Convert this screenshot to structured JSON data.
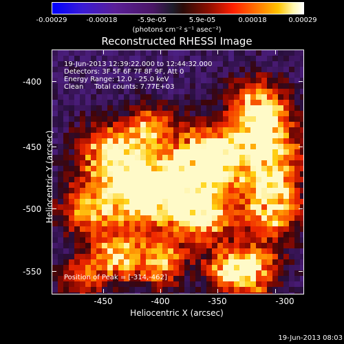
{
  "colorbar": {
    "ticks": [
      "-0.00029",
      "-0.00018",
      "-5.9e-05",
      "5.9e-05",
      "0.00018",
      "0.00029"
    ],
    "units": "(photons cm⁻² s⁻¹ asec⁻²)"
  },
  "title": "Reconstructed RHESSI Image",
  "info": {
    "line1": "19-Jun-2013 12:39:22.000 to 12:44:32.000",
    "line2": "Detectors: 3F 5F 6F 7F 8F 9F, Att 0",
    "line3": "Energy Range: 12.0 - 25.0 keV",
    "line4": "Clean     Total counts: 7.77E+03",
    "peak": "Position of Peak = [-314,-462]"
  },
  "x_axis": {
    "label": "Heliocentric X (arcsec)",
    "ticks": [
      "-450",
      "-400",
      "-350",
      "-300"
    ]
  },
  "y_axis": {
    "label": "Heliocentric Y (arcsec)",
    "ticks": [
      "-400",
      "-450",
      "-500",
      "-550"
    ]
  },
  "timestamp": "19-Jun-2013 08:03"
}
